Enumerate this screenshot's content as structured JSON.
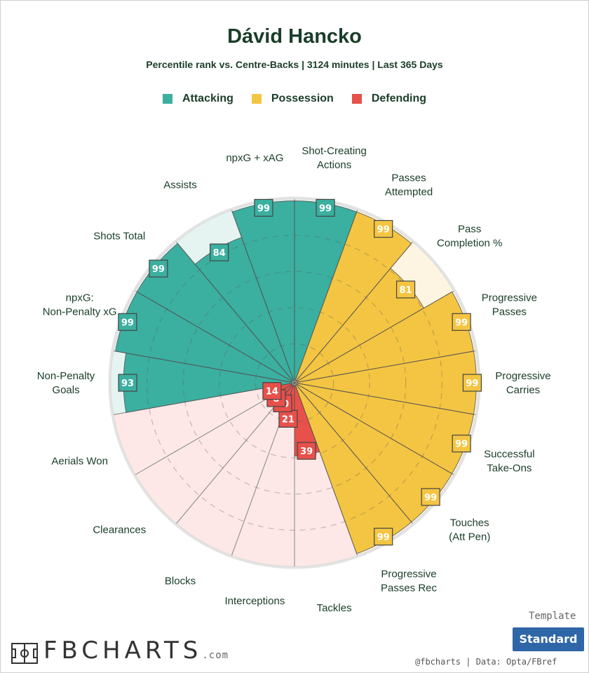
{
  "title": "Dávid Hancko",
  "subtitle": "Percentile rank vs. Centre-Backs | 3124 minutes | Last 365 Days",
  "legend": [
    {
      "label": "Attacking",
      "color": "#3bafa0"
    },
    {
      "label": "Possession",
      "color": "#f4c542"
    },
    {
      "label": "Defending",
      "color": "#e8504a"
    }
  ],
  "template": {
    "label": "Template",
    "button": "Standard"
  },
  "credit": "@fbcharts | Data: Opta/FBref",
  "logo": {
    "text": "FBCHARTS",
    "suffix": ".com"
  },
  "chart_data": {
    "type": "radar",
    "categories": [
      "Shot-Creating Actions",
      "Passes Attempted",
      "Pass Completion %",
      "Progressive Passes",
      "Progressive Carries",
      "Successful Take-Ons",
      "Touches (Att Pen)",
      "Progressive Passes Rec",
      "Tackles",
      "Interceptions",
      "Blocks",
      "Clearances",
      "Aerials Won",
      "Non-Penalty Goals",
      "npxG: Non-Penalty xG",
      "Shots Total",
      "Assists",
      "npxG + xAG"
    ],
    "groups": [
      "Attacking",
      "Possession",
      "Possession",
      "Possession",
      "Possession",
      "Possession",
      "Possession",
      "Possession",
      "Defending",
      "Defending",
      "Defending",
      "Defending",
      "Defending",
      "Attacking",
      "Attacking",
      "Attacking",
      "Attacking",
      "Attacking"
    ],
    "values": [
      99,
      99,
      81,
      99,
      99,
      99,
      99,
      99,
      39,
      21,
      10,
      8,
      14,
      93,
      99,
      99,
      84,
      99
    ],
    "range": [
      0,
      100
    ]
  }
}
